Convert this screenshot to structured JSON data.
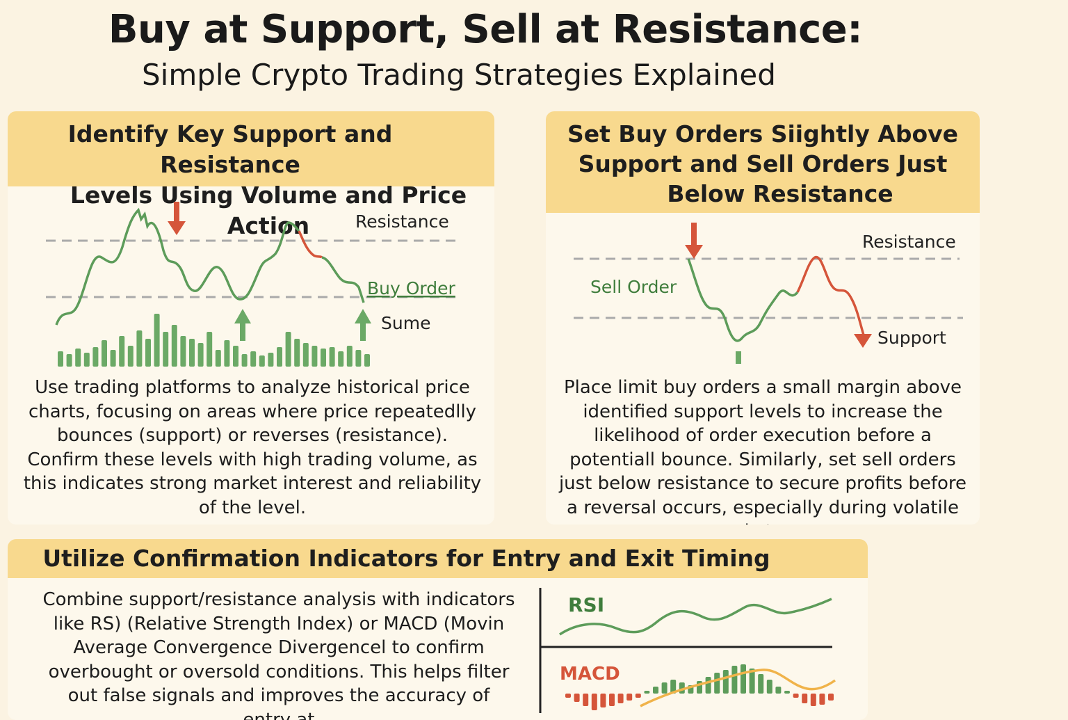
{
  "header": {
    "title": "Buy at Support, Sell at Resistance:",
    "subtitle": "Simple Crypto Trading Strategies Explained"
  },
  "panel1": {
    "heading_line1": "Identify Key Support and Resistance",
    "heading_line2": "Levels Using Volume and Price Action",
    "chart_labels": {
      "resistance": "Resistance",
      "buy_order": "Buy Order",
      "volume": "Sume"
    },
    "body": "Use trading platforms to analyze historical price charts, focusing on areas where price repeatedlly bounces (support) or reverses (resistance). Confirm these levels with high trading volume, as this indicates strong market interest and reliability of the level."
  },
  "panel2": {
    "heading_line1": "Set Buy Orders Siightly Above",
    "heading_line2": "Support and Sell Orders Just",
    "heading_line3": "Below Resistance",
    "chart_labels": {
      "resistance": "Resistance",
      "sell_order": "Sell Order",
      "support": "Support"
    },
    "body": "Place limit buy orders a small margin above identified support levels to increase the likelihood of order execution before a potentiall bounce. Similarly, set sell orders just below resistance to secure profits before a reversal occurs, especially during volatile market con-"
  },
  "panel3": {
    "heading": "Utilize Confirmation Indicators for Entry and Exit Timing",
    "body": "Combine support/resistance analysis with indicators like RS) (Relative Strength Index) or MACD (Movin Average Convergence Divergencel to confirm overbought or oversold conditions. This helps filter out false signals and improves the accuracy of entry at",
    "rsi_label": "RSI",
    "macd_label": "MACD"
  },
  "colors": {
    "green": "#5d9c5a",
    "red": "#d5553a",
    "banner": "#f8d98e",
    "orange": "#f0b34a"
  },
  "icons": [
    "down-arrow-icon",
    "up-arrow-icon"
  ]
}
